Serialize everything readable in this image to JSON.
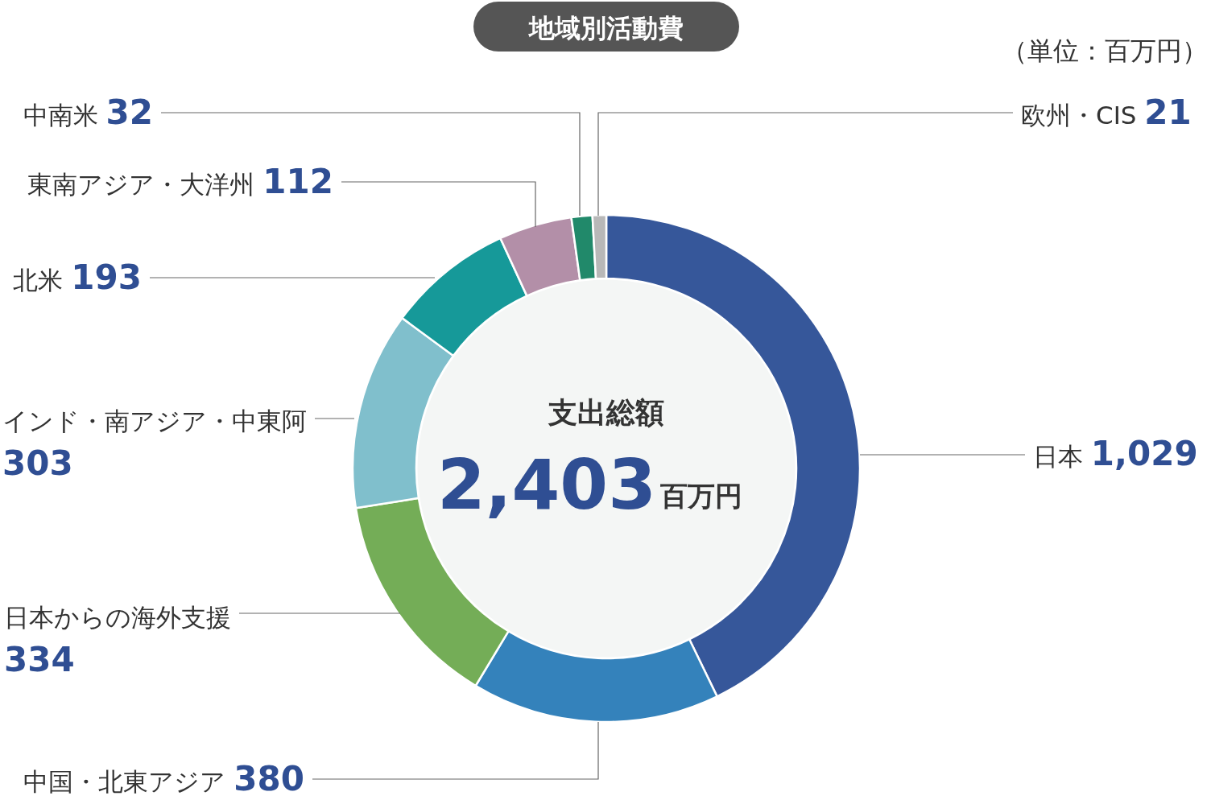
{
  "chart_data": {
    "type": "donut",
    "title": "地域別活動費",
    "categories": [
      "日本",
      "中国・北東アジア",
      "日本からの海外支援",
      "インド・南アジア・中東阿",
      "北米",
      "東南アジア・大洋州",
      "中南米",
      "欧州・CIS"
    ],
    "values": [
      1029,
      380,
      334,
      303,
      193,
      112,
      32,
      21
    ],
    "value_labels": [
      "1,029",
      "380",
      "334",
      "303",
      "193",
      "112",
      "32",
      "21"
    ],
    "colors": [
      "#36579a",
      "#3482bb",
      "#74ad57",
      "#80bfcc",
      "#169999",
      "#b38fa8",
      "#21896a",
      "#b8b8b8"
    ],
    "annotations": [
      "（単位：百万円）",
      "支出総額",
      "2,403",
      "百万円"
    ]
  }
}
